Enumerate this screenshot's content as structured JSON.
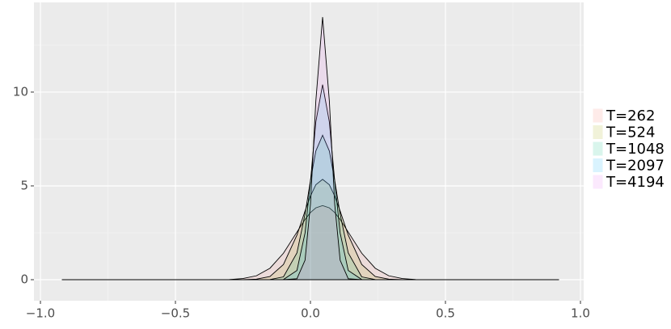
{
  "chart_data": {
    "type": "density",
    "x": [
      -0.92,
      -0.4,
      -0.3,
      -0.25,
      -0.2,
      -0.15,
      -0.1,
      -0.05,
      -0.02,
      0,
      0.02,
      0.045,
      0.07,
      0.09,
      0.11,
      0.14,
      0.19,
      0.24,
      0.29,
      0.34,
      0.39,
      0.49,
      0.92
    ],
    "series": [
      {
        "name": "T=262",
        "color": "#F8766D",
        "values": [
          0,
          0,
          0.01,
          0.06,
          0.21,
          0.61,
          1.41,
          2.54,
          3.21,
          3.58,
          3.83,
          3.95,
          3.83,
          3.58,
          3.21,
          2.54,
          1.41,
          0.61,
          0.21,
          0.06,
          0.01,
          0,
          0
        ]
      },
      {
        "name": "T=524",
        "color": "#A3A500",
        "values": [
          0,
          0,
          0,
          0,
          0.03,
          0.17,
          0.81,
          2.38,
          3.66,
          4.46,
          5.06,
          5.35,
          5.06,
          4.46,
          3.66,
          2.38,
          0.81,
          0.17,
          0.03,
          0,
          0,
          0,
          0
        ]
      },
      {
        "name": "T=1048",
        "color": "#00BF7D",
        "values": [
          0,
          0,
          0,
          0,
          0,
          0.01,
          0.15,
          1.43,
          3.5,
          5.28,
          6.86,
          7.7,
          6.86,
          5.28,
          3.5,
          1.43,
          0.15,
          0.01,
          0,
          0,
          0,
          0,
          0
        ]
      },
      {
        "name": "T=2097",
        "color": "#00B0F6",
        "values": [
          0,
          0,
          0,
          0,
          0,
          0,
          0.01,
          0.49,
          2.49,
          5.24,
          8.41,
          10.4,
          8.41,
          5.24,
          2.49,
          0.49,
          0.01,
          0,
          0,
          0,
          0,
          0,
          0
        ]
      },
      {
        "name": "T=4194",
        "color": "#E76BF3",
        "values": [
          0,
          0,
          0,
          0,
          0,
          0,
          0,
          0.05,
          1.04,
          4.01,
          9.53,
          14.0,
          9.53,
          4.01,
          1.04,
          0.05,
          0,
          0,
          0,
          0,
          0,
          0,
          0
        ]
      }
    ],
    "xlim": [
      -1.024,
      1.012
    ],
    "ylim": [
      -1.12,
      14.78
    ],
    "xticks": [
      {
        "value": -1,
        "label": "−1.0"
      },
      {
        "value": -0.5,
        "label": "−0.5"
      },
      {
        "value": 0,
        "label": "0.0"
      },
      0.5,
      {
        "value": 1,
        "label": "1.0"
      }
    ],
    "yticks": [
      0,
      5,
      10
    ],
    "minor_xticks": [
      -0.75,
      -0.25,
      0.25,
      0.75
    ],
    "minor_yticks": [
      2.5,
      7.5,
      12.5
    ],
    "grid": true,
    "legend": "right"
  }
}
